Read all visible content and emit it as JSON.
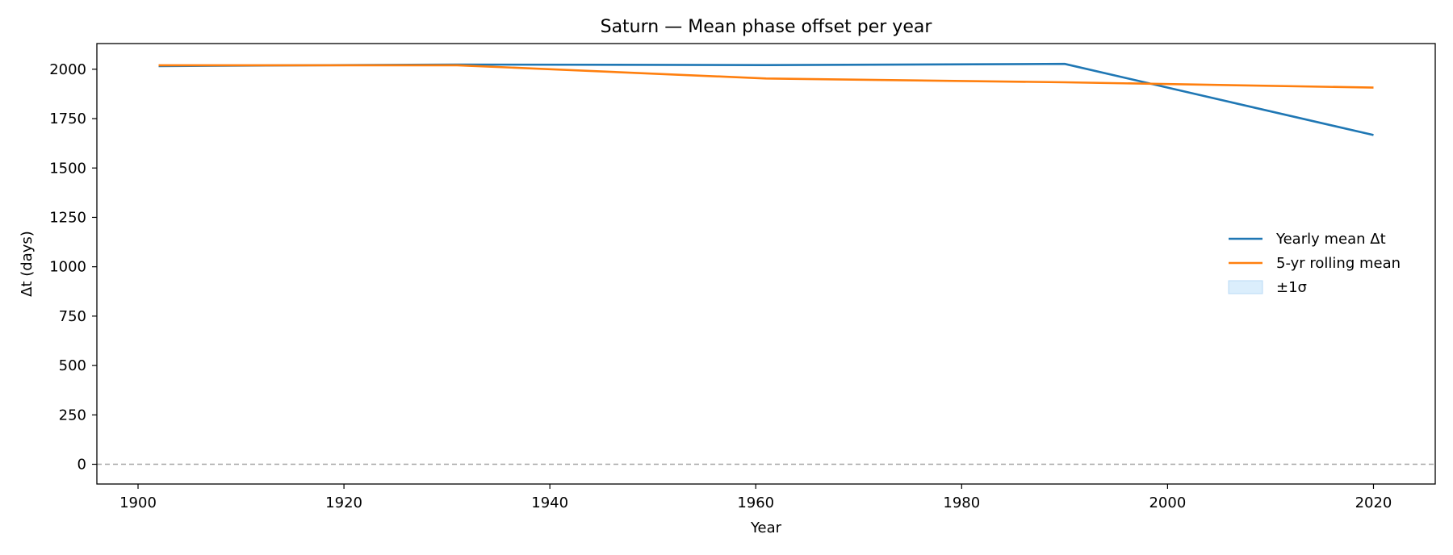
{
  "chart_data": {
    "type": "line",
    "title": "Saturn — Mean phase offset per year",
    "xlabel": "Year",
    "ylabel": "Δt (days)",
    "xlim": [
      1896,
      2026
    ],
    "ylim": [
      -100,
      2130
    ],
    "x_ticks": [
      1900,
      1920,
      1940,
      1960,
      1980,
      2000,
      2020
    ],
    "y_ticks": [
      0,
      250,
      500,
      750,
      1000,
      1250,
      1500,
      1750,
      2000
    ],
    "grid": false,
    "legend_position": "center-right",
    "reference_line": {
      "y": 0,
      "style": "dashed",
      "color": "#a6a6a6"
    },
    "series": [
      {
        "name": "Yearly mean Δt",
        "color": "#1f77b4",
        "x": [
          1902,
          1931,
          1961,
          1990,
          2020
        ],
        "y": [
          2016,
          2024,
          2021,
          2027,
          1667
        ]
      },
      {
        "name": "5-yr rolling mean",
        "color": "#ff7f0e",
        "x": [
          1902,
          1931,
          1961,
          1990,
          2020
        ],
        "y": [
          2020,
          2020,
          1953,
          1934,
          1907
        ]
      }
    ],
    "band": {
      "name": "±1σ",
      "color": "#dbeefc",
      "edge_color": "#b9d9f5"
    }
  }
}
